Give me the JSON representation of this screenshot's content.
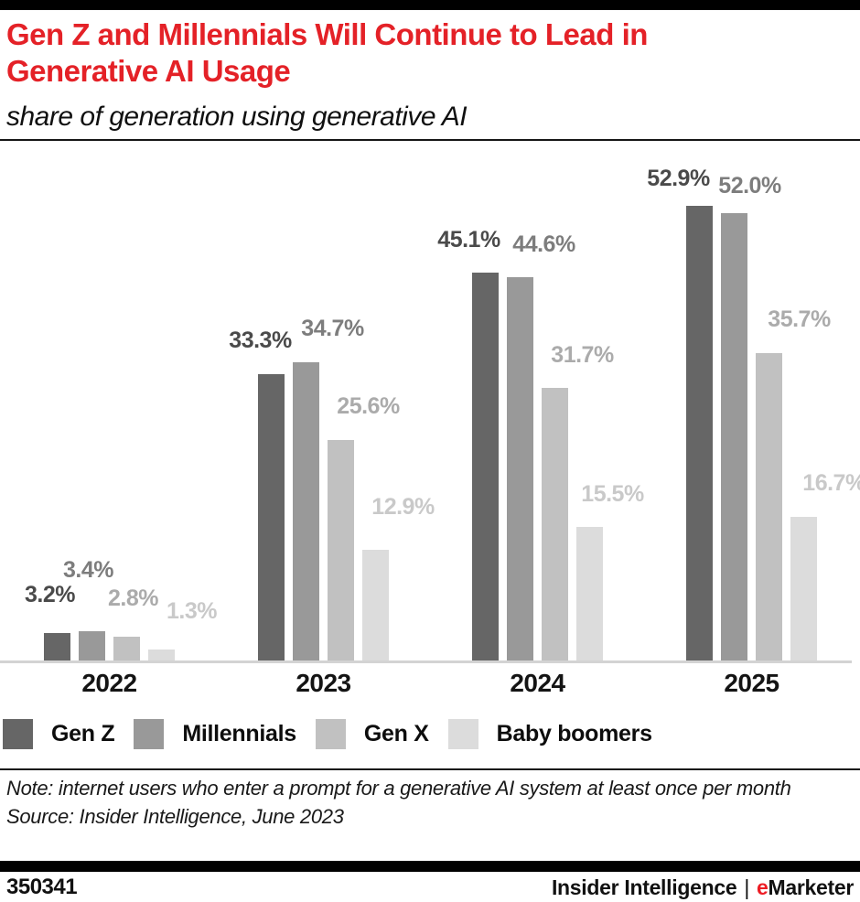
{
  "chart_data": {
    "type": "bar",
    "title": "Gen Z and Millennials Will Continue to Lead in Generative AI Usage",
    "subtitle": "share of generation using generative AI",
    "categories": [
      "2022",
      "2023",
      "2024",
      "2025"
    ],
    "series": [
      {
        "name": "Gen Z",
        "color": "#666666",
        "label_color": "#4a4a4a",
        "values": [
          3.2,
          33.3,
          45.1,
          52.9
        ]
      },
      {
        "name": "Millennials",
        "color": "#999999",
        "label_color": "#7d7d7d",
        "values": [
          3.4,
          34.7,
          44.6,
          52.0
        ]
      },
      {
        "name": "Gen X",
        "color": "#c1c1c1",
        "label_color": "#ababab",
        "values": [
          2.8,
          25.6,
          31.7,
          35.7
        ]
      },
      {
        "name": "Baby boomers",
        "color": "#dcdcdc",
        "label_color": "#c9c9c9",
        "values": [
          1.3,
          12.9,
          15.5,
          16.7
        ]
      }
    ],
    "value_suffix": "%",
    "value_decimals": 1,
    "ylim": [
      0,
      58.7
    ],
    "grid": false,
    "legend_position": "bottom",
    "xlabel": "",
    "ylabel": ""
  },
  "note": {
    "note": "Note: internet users who enter a prompt for a generative AI system at least once per month",
    "source": "Source: Insider Intelligence, June 2023"
  },
  "footer": {
    "chart_id": "350341",
    "brand": {
      "primary": "Insider Intelligence",
      "separator": "|",
      "accent_letter": "e",
      "accent_rest": "Marketer"
    }
  },
  "colors": {
    "title_red": "#e42127",
    "brand_red": "#ed1c24",
    "axis_line": "#d3d3d3",
    "frame_black": "#000000"
  }
}
